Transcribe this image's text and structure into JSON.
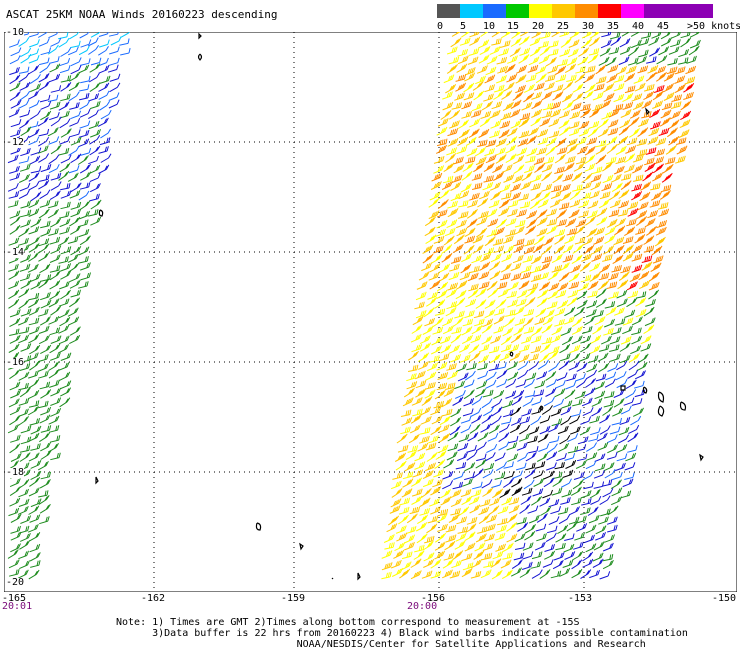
{
  "title": "ASCAT 25KM NOAA Winds 20160223 descending",
  "legend": {
    "labels": [
      "0",
      "5",
      "10",
      "15",
      "20",
      "25",
      "30",
      "35",
      "40",
      "45"
    ],
    "unit": ">50 knots",
    "colors": [
      "#555555",
      "#a8a8a8",
      "#00c8ff",
      "#1a6bff",
      "#1414d2",
      "#00c800",
      "#1e8c1e",
      "#ffff00",
      "#ffc800",
      "#ff8c00",
      "#ff0000",
      "#b40000",
      "#ff00ff",
      "#8c00b4"
    ]
  },
  "lat_labels": [
    "-10",
    "-12",
    "-14",
    "-16",
    "-18",
    "-20"
  ],
  "lon_labels": [
    "-165",
    "-162",
    "-159",
    "-156",
    "-153",
    "-150"
  ],
  "time_labels": [
    "20:01",
    "20:00"
  ],
  "note_lines": [
    "Note: 1) Times are GMT 2)Times along bottom correspond to measurement at -15S",
    "      3)Data buffer is 22 hrs from 20160223 4) Black wind barbs indicate possible contamination",
    "                              NOAA/NESDIS/Center for Satellite Applications and Research"
  ]
}
